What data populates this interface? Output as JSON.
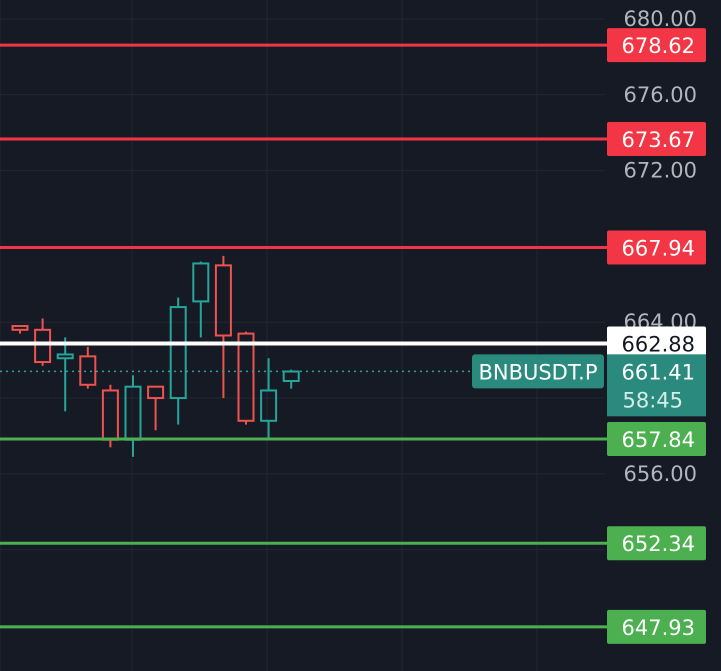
{
  "chart_data": {
    "type": "candlestick",
    "symbol": "BNBUSDT.P",
    "last_price": "661.41",
    "countdown": "58:45",
    "y_axis": {
      "range": [
        645.6,
        681.0
      ],
      "ticks": [
        "680.00",
        "676.00",
        "672.00",
        "664.00",
        "656.00"
      ]
    },
    "horizontal_lines": [
      {
        "value": 678.62,
        "label": "678.62",
        "kind": "resistance",
        "color": "#f23645"
      },
      {
        "value": 673.67,
        "label": "673.67",
        "kind": "resistance",
        "color": "#f23645"
      },
      {
        "value": 667.94,
        "label": "667.94",
        "kind": "resistance",
        "color": "#f23645"
      },
      {
        "value": 662.88,
        "label": "662.88",
        "kind": "level",
        "color": "#ffffff"
      },
      {
        "value": 657.84,
        "label": "657.84",
        "kind": "support",
        "color": "#4caf50"
      },
      {
        "value": 652.34,
        "label": "652.34",
        "kind": "support",
        "color": "#4caf50"
      },
      {
        "value": 647.93,
        "label": "647.93",
        "kind": "support",
        "color": "#4caf50"
      }
    ],
    "candles": [
      {
        "open": 663.8,
        "close": 663.6,
        "high": 663.8,
        "low": 663.4
      },
      {
        "open": 663.6,
        "close": 661.9,
        "high": 664.2,
        "low": 661.7
      },
      {
        "open": 662.1,
        "close": 662.3,
        "high": 663.2,
        "low": 659.3
      },
      {
        "open": 662.2,
        "close": 660.7,
        "high": 662.7,
        "low": 660.5
      },
      {
        "open": 660.4,
        "close": 657.8,
        "high": 660.7,
        "low": 657.4
      },
      {
        "open": 657.8,
        "close": 660.6,
        "high": 661.2,
        "low": 656.9
      },
      {
        "open": 660.6,
        "close": 660.0,
        "high": 660.6,
        "low": 658.3
      },
      {
        "open": 660.0,
        "close": 664.8,
        "high": 665.3,
        "low": 658.6
      },
      {
        "open": 665.1,
        "close": 667.1,
        "high": 667.2,
        "low": 663.2
      },
      {
        "open": 667.0,
        "close": 663.3,
        "high": 667.5,
        "low": 660.0
      },
      {
        "open": 663.4,
        "close": 658.8,
        "high": 663.5,
        "low": 658.6
      },
      {
        "open": 658.8,
        "close": 660.4,
        "high": 662.1,
        "low": 657.9
      },
      {
        "open": 660.9,
        "close": 661.4,
        "high": 661.5,
        "low": 660.5
      }
    ],
    "colors": {
      "background": "#161a25",
      "grid": "#232733",
      "up": "#26a69a",
      "down": "#ef5350",
      "axis_text": "#b2b5be",
      "symbol_badge": "#2b8a7e",
      "price_badge": "#2b8a7e",
      "resistance": "#f23645",
      "support": "#4caf50",
      "level": "#ffffff"
    }
  }
}
